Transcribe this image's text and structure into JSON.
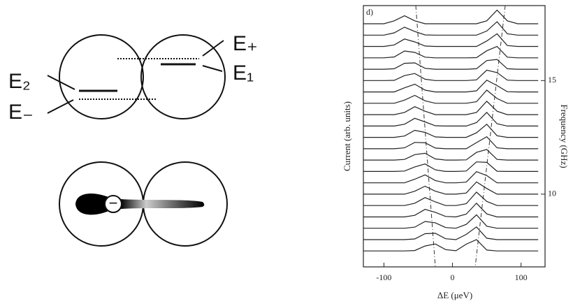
{
  "diagram": {
    "labels": {
      "e_two": "E₂",
      "e_minus": "E₋",
      "e_plus": "E₊",
      "e_one": "E₁"
    },
    "electron": "−"
  },
  "chart_data": {
    "type": "waterfall",
    "panel_label": "d)",
    "x_label": "ΔE  (μeV)",
    "y_label": "Current  (arb. units)",
    "y2_label": "Frequency (GHz)",
    "xlim": [
      -130,
      135
    ],
    "xticks": [
      -100,
      0,
      100
    ],
    "ylim": [
      6.8,
      18.3
    ],
    "yticks": [
      10,
      15
    ],
    "color": "#222222",
    "x": [
      -130,
      -115,
      -100,
      -85,
      -70,
      -55,
      -40,
      -25,
      -10,
      5,
      20,
      35,
      50,
      65,
      80,
      95,
      110,
      125
    ],
    "series": [
      {
        "offset": 7.5,
        "values": [
          0,
          0,
          0,
          0,
          0,
          0.02,
          0.22,
          0.31,
          0.06,
          0.01,
          0.3,
          0.5,
          0.04,
          0,
          0,
          0,
          0,
          0
        ]
      },
      {
        "offset": 8.0,
        "values": [
          0,
          0,
          0,
          0,
          0,
          0.03,
          0.26,
          0.28,
          0.04,
          0,
          0.23,
          0.56,
          0.06,
          0,
          0,
          0,
          0,
          0
        ]
      },
      {
        "offset": 8.5,
        "values": [
          0,
          0,
          0,
          0,
          0,
          0.05,
          0.3,
          0.24,
          0.03,
          0,
          0.17,
          0.59,
          0.09,
          0,
          0,
          0,
          0,
          0
        ]
      },
      {
        "offset": 9.0,
        "values": [
          0,
          0,
          0,
          0,
          0,
          0.07,
          0.33,
          0.2,
          0.02,
          0,
          0.12,
          0.6,
          0.13,
          0,
          0,
          0,
          0,
          0
        ]
      },
      {
        "offset": 9.5,
        "values": [
          0,
          0,
          0,
          0,
          0,
          0.1,
          0.35,
          0.16,
          0,
          0,
          0.08,
          0.59,
          0.18,
          0,
          0,
          0,
          0,
          0
        ]
      },
      {
        "offset": 10.0,
        "values": [
          0,
          0,
          0,
          0,
          0,
          0.13,
          0.35,
          0.13,
          0,
          0,
          0.05,
          0.54,
          0.25,
          0,
          0,
          0,
          0,
          0
        ]
      },
      {
        "offset": 10.5,
        "values": [
          0,
          0,
          0,
          0,
          0,
          0.16,
          0.35,
          0.1,
          0,
          0,
          0.03,
          0.49,
          0.32,
          0,
          0,
          0,
          0,
          0
        ]
      },
      {
        "offset": 11.0,
        "values": [
          0,
          0,
          0,
          0,
          0.02,
          0.2,
          0.33,
          0.07,
          0,
          0,
          0.02,
          0.42,
          0.4,
          0.01,
          0,
          0,
          0,
          0
        ]
      },
      {
        "offset": 11.5,
        "values": [
          0,
          0,
          0,
          0,
          0.03,
          0.24,
          0.3,
          0.05,
          0,
          0,
          0.01,
          0.34,
          0.47,
          0.03,
          0,
          0,
          0,
          0
        ]
      },
      {
        "offset": 12.0,
        "values": [
          0,
          0,
          0,
          0,
          0.04,
          0.28,
          0.26,
          0.03,
          0,
          0,
          0,
          0.27,
          0.53,
          0.04,
          0,
          0,
          0,
          0
        ]
      },
      {
        "offset": 12.5,
        "values": [
          0,
          0,
          0,
          0,
          0.06,
          0.31,
          0.22,
          0.02,
          0,
          0,
          0,
          0.2,
          0.58,
          0.07,
          0,
          0,
          0,
          0
        ]
      },
      {
        "offset": 13.0,
        "values": [
          0,
          0,
          0,
          0,
          0.08,
          0.34,
          0.18,
          0.01,
          0,
          0,
          0,
          0.15,
          0.6,
          0.1,
          0,
          0,
          0,
          0
        ]
      },
      {
        "offset": 13.5,
        "values": [
          0,
          0,
          0,
          0,
          0.1,
          0.35,
          0.15,
          0,
          0,
          0,
          0,
          0.1,
          0.59,
          0.15,
          0,
          0,
          0,
          0
        ]
      },
      {
        "offset": 14.0,
        "values": [
          0,
          0,
          0,
          0,
          0.14,
          0.35,
          0.11,
          0,
          0,
          0,
          0,
          0.07,
          0.58,
          0.21,
          0,
          0,
          0,
          0
        ]
      },
      {
        "offset": 14.5,
        "values": [
          0,
          0,
          0,
          0,
          0.18,
          0.34,
          0.08,
          0,
          0,
          0,
          0,
          0.05,
          0.52,
          0.28,
          0.01,
          0,
          0,
          0
        ]
      },
      {
        "offset": 15.0,
        "values": [
          0,
          0,
          0,
          0.01,
          0.22,
          0.31,
          0.06,
          0,
          0,
          0,
          0,
          0.03,
          0.46,
          0.35,
          0.02,
          0,
          0,
          0
        ]
      },
      {
        "offset": 15.5,
        "values": [
          0,
          0,
          0,
          0.02,
          0.26,
          0.28,
          0.04,
          0,
          0,
          0,
          0,
          0.02,
          0.38,
          0.43,
          0.02,
          0,
          0,
          0
        ]
      },
      {
        "offset": 16.0,
        "values": [
          0,
          0,
          0,
          0.04,
          0.3,
          0.24,
          0.03,
          0,
          0,
          0,
          0,
          0.01,
          0.31,
          0.5,
          0.03,
          0,
          0,
          0
        ]
      },
      {
        "offset": 16.5,
        "values": [
          0,
          0,
          0,
          0.07,
          0.33,
          0.2,
          0.02,
          0,
          0,
          0,
          0,
          0,
          0.24,
          0.56,
          0.04,
          0,
          0,
          0
        ]
      },
      {
        "offset": 17.0,
        "values": [
          0,
          0,
          0,
          0.1,
          0.35,
          0.16,
          0.01,
          0,
          0,
          0,
          0,
          0,
          0.18,
          0.59,
          0.06,
          0,
          0,
          0
        ]
      },
      {
        "offset": 17.5,
        "values": [
          0,
          0,
          0,
          0.13,
          0.35,
          0.13,
          0,
          0,
          0,
          0,
          0,
          0,
          0.13,
          0.6,
          0.13,
          0,
          0,
          0
        ]
      }
    ]
  }
}
